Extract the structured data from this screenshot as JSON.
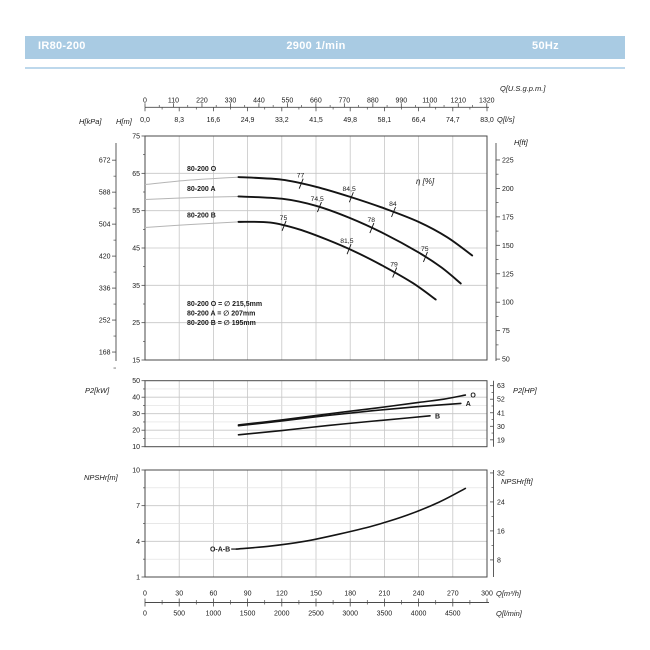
{
  "header": {
    "model": "IR80-200",
    "speed": "2900 1/min",
    "frequency": "50Hz"
  },
  "colors": {
    "header_bg": "#a9cbe3",
    "header_line": "#bdd8ec",
    "grid": "#c6c6c6",
    "grid_minor": "#dfdfdf",
    "border": "#4a4a4a",
    "curve": "#141414",
    "curve_faded": "#b5b5b5",
    "text": "#1a1a1a"
  },
  "chart_data": {
    "type": "line",
    "x_shared": {
      "gpm": {
        "label": "Q[U.S.g.p.m.]",
        "ticks": [
          0,
          110,
          220,
          330,
          440,
          550,
          660,
          770,
          880,
          990,
          1100,
          1210,
          1320
        ]
      },
      "ls": {
        "label": "Q[l/s]",
        "ticks": [
          "0,0",
          "8,3",
          "16,6",
          "24,9",
          "33,2",
          "41,5",
          "49,8",
          "58,1",
          "66,4",
          "74,7",
          "83,0"
        ]
      },
      "m3h": {
        "label": "Q[m³/h]",
        "ticks": [
          0,
          30,
          60,
          90,
          120,
          150,
          180,
          210,
          240,
          270,
          300
        ],
        "range": [
          0,
          300
        ]
      },
      "lmin": {
        "label": "Q[l/min]",
        "ticks": [
          0,
          500,
          1000,
          1500,
          2000,
          2500,
          3000,
          3500,
          4000,
          4500
        ]
      }
    },
    "head_chart": {
      "ylim": [
        15,
        75
      ],
      "y_left_m": {
        "label": "H[m]",
        "ticks": [
          75,
          65,
          55,
          45,
          35,
          25,
          15
        ]
      },
      "y_left_kpa": {
        "label": "H[kPa]",
        "ticks": [
          672,
          588,
          504,
          420,
          336,
          252,
          168
        ]
      },
      "y_right_ft": {
        "label": "H[ft]",
        "ticks": [
          225,
          200,
          175,
          150,
          125,
          100,
          75,
          50
        ]
      },
      "eta_label": "η [%]",
      "curves": [
        {
          "name": "80-200 O",
          "ext": [
            [
              0,
              62.0
            ],
            [
              40,
              63.2
            ],
            [
              82,
              64.0
            ]
          ],
          "points": [
            [
              82,
              64.0
            ],
            [
              120,
              63.3
            ],
            [
              150,
              61.4
            ],
            [
              180,
              58.7
            ],
            [
              210,
              55.6
            ],
            [
              240,
              52.0
            ],
            [
              265,
              47.9
            ],
            [
              287,
              43.0
            ]
          ]
        },
        {
          "name": "80-200 A",
          "ext": [
            [
              0,
              58.0
            ],
            [
              40,
              58.5
            ],
            [
              82,
              58.8
            ]
          ],
          "points": [
            [
              82,
              58.8
            ],
            [
              120,
              58.2
            ],
            [
              150,
              56.3
            ],
            [
              180,
              53.0
            ],
            [
              210,
              48.8
            ],
            [
              240,
              43.8
            ],
            [
              260,
              39.8
            ],
            [
              277,
              35.5
            ]
          ]
        },
        {
          "name": "80-200 B",
          "ext": [
            [
              0,
              50.5
            ],
            [
              40,
              51.3
            ],
            [
              82,
              52.0
            ]
          ],
          "points": [
            [
              82,
              52.0
            ],
            [
              110,
              51.8
            ],
            [
              135,
              50.0
            ],
            [
              160,
              47.2
            ],
            [
              185,
              43.9
            ],
            [
              210,
              40.0
            ],
            [
              235,
              35.6
            ],
            [
              255,
              31.2
            ]
          ]
        }
      ],
      "efficiency_marks": [
        {
          "curve": 0,
          "q": 137,
          "label": "77"
        },
        {
          "curve": 0,
          "q": 181,
          "label": "84,5"
        },
        {
          "curve": 0,
          "q": 218,
          "label": "84"
        },
        {
          "curve": 1,
          "q": 153,
          "label": "74,5"
        },
        {
          "curve": 1,
          "q": 199,
          "label": "78"
        },
        {
          "curve": 1,
          "q": 246,
          "label": "75"
        },
        {
          "curve": 2,
          "q": 122,
          "label": "75"
        },
        {
          "curve": 2,
          "q": 179,
          "label": "81,5"
        },
        {
          "curve": 2,
          "q": 219,
          "label": "79"
        }
      ],
      "impellers": [
        "80-200 O = ∅ 215,5mm",
        "80-200 A = ∅ 207mm",
        "80-200 B = ∅ 195mm"
      ]
    },
    "power_chart": {
      "ylim": [
        10,
        50
      ],
      "y_left": {
        "label": "P2[kW]",
        "ticks": [
          50,
          40,
          30,
          20,
          10
        ]
      },
      "y_right": {
        "label": "P2[HP]",
        "ticks": [
          63,
          52,
          41,
          30,
          19
        ]
      },
      "curves": [
        {
          "name": "O",
          "points": [
            [
              82,
              23.2
            ],
            [
              120,
              26.2
            ],
            [
              160,
              29.8
            ],
            [
              200,
              33.2
            ],
            [
              240,
              36.8
            ],
            [
              262,
              38.8
            ],
            [
              281,
              41.3
            ]
          ]
        },
        {
          "name": "A",
          "points": [
            [
              82,
              22.7
            ],
            [
              120,
              25.6
            ],
            [
              160,
              28.9
            ],
            [
              200,
              31.8
            ],
            [
              240,
              34.3
            ],
            [
              277,
              36.2
            ]
          ]
        },
        {
          "name": "B",
          "points": [
            [
              82,
              17.2
            ],
            [
              120,
              19.8
            ],
            [
              160,
              22.8
            ],
            [
              200,
              25.5
            ],
            [
              230,
              27.4
            ],
            [
              250,
              28.7
            ]
          ]
        }
      ]
    },
    "npsh_chart": {
      "ylim": [
        1,
        10
      ],
      "y_left": {
        "label": "NPSHr[m]",
        "ticks": [
          10,
          7,
          4,
          1
        ]
      },
      "y_right": {
        "label": "NPSHr[ft]",
        "ticks": [
          32,
          24,
          16,
          8
        ]
      },
      "curves": [
        {
          "name": "O-A-B",
          "points": [
            [
              80,
              3.35
            ],
            [
              110,
              3.6
            ],
            [
              140,
              4.0
            ],
            [
              170,
              4.6
            ],
            [
              200,
              5.3
            ],
            [
              230,
              6.2
            ],
            [
              258,
              7.3
            ],
            [
              281,
              8.45
            ]
          ]
        }
      ]
    }
  }
}
